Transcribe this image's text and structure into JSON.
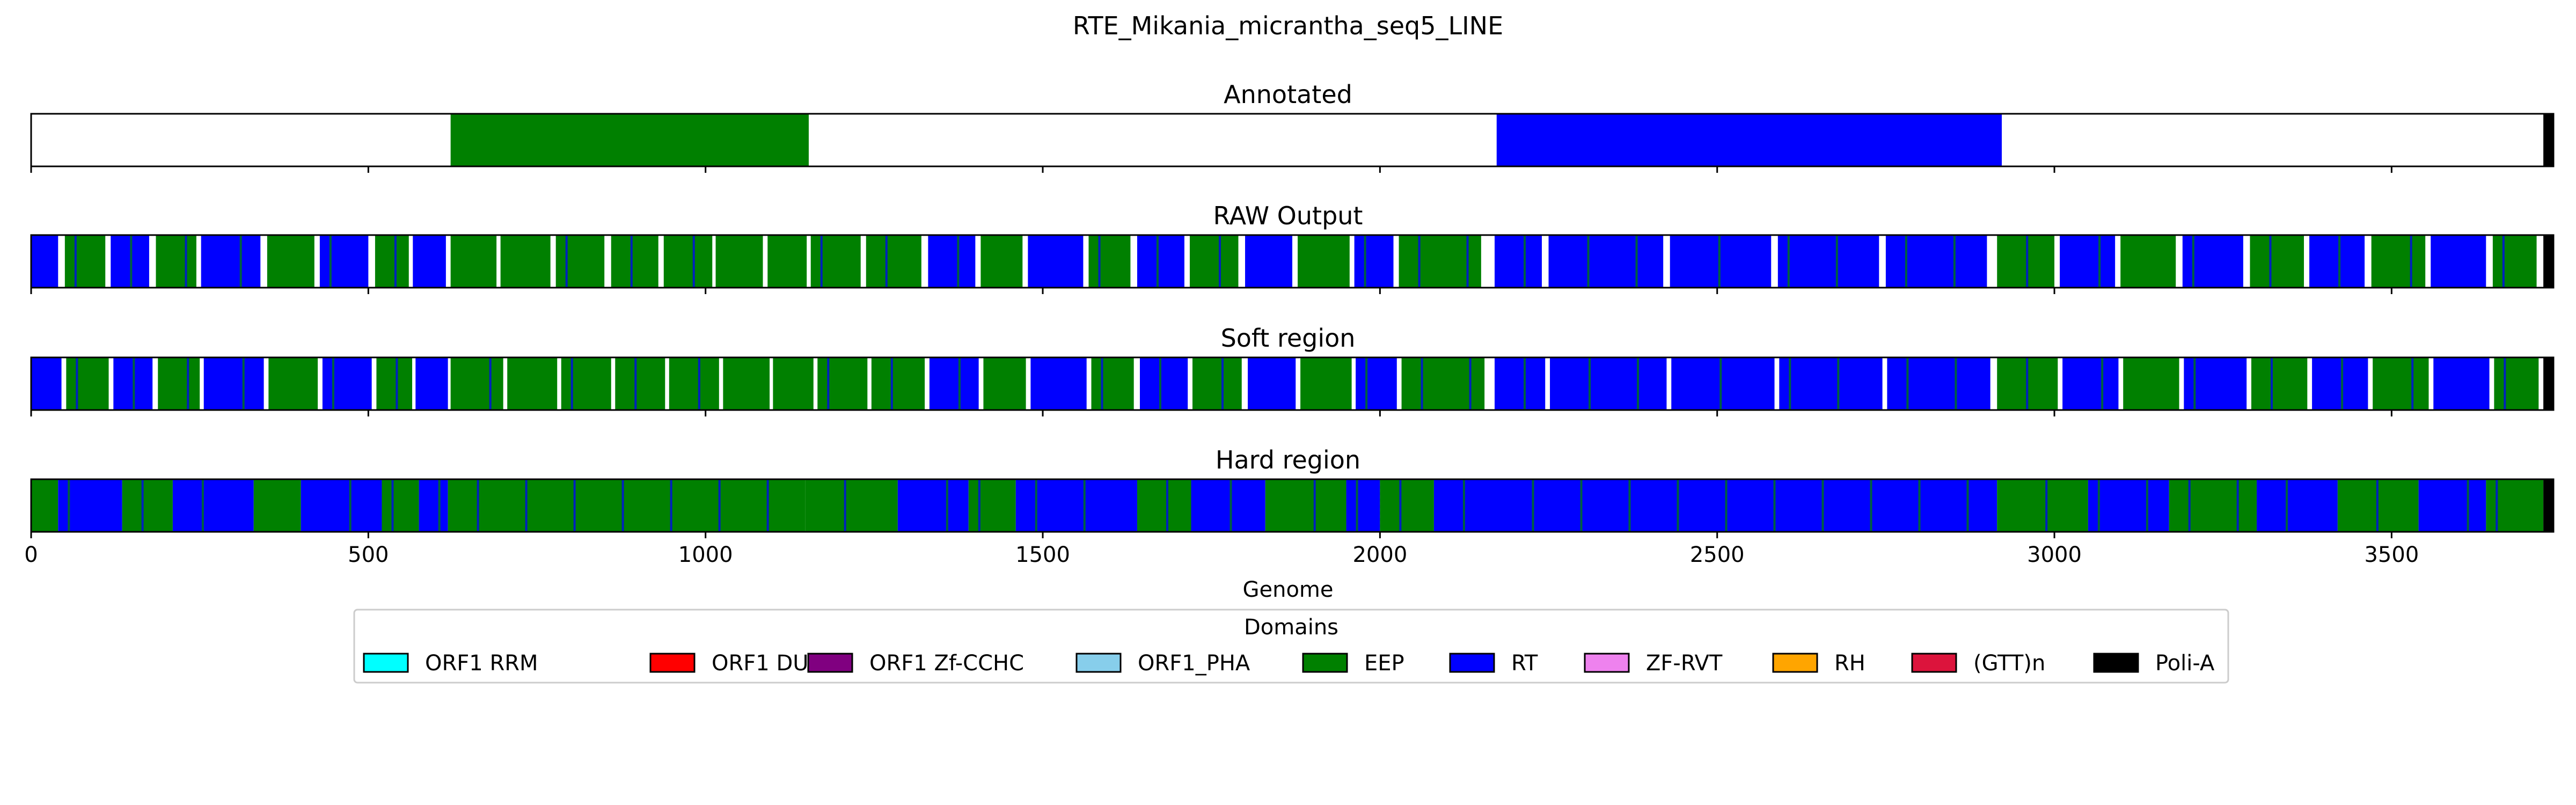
{
  "chart_data": {
    "type": "genome-track",
    "title": "RTE_Mikania_micrantha_seq5_LINE",
    "xlabel": "Genome",
    "xlim": [
      0,
      3740
    ],
    "xticks": [
      0,
      500,
      1000,
      1500,
      2000,
      2500,
      3000,
      3500
    ],
    "tracks": [
      {
        "label": "Annotated",
        "segments": [
          {
            "start": 622,
            "end": 1153,
            "domain": "EEP"
          },
          {
            "start": 2173,
            "end": 2922,
            "domain": "RT"
          },
          {
            "start": 3725,
            "end": 3740,
            "domain": "Poli-A"
          }
        ]
      },
      {
        "label": "RAW Output",
        "segments": [
          {
            "start": 0,
            "end": 40,
            "domain": "RT"
          },
          {
            "start": 50,
            "end": 110,
            "domain": "EEP"
          },
          {
            "start": 118,
            "end": 175,
            "domain": "RT"
          },
          {
            "start": 185,
            "end": 245,
            "domain": "EEP"
          },
          {
            "start": 252,
            "end": 340,
            "domain": "RT"
          },
          {
            "start": 350,
            "end": 420,
            "domain": "EEP"
          },
          {
            "start": 428,
            "end": 500,
            "domain": "RT"
          },
          {
            "start": 510,
            "end": 560,
            "domain": "EEP"
          },
          {
            "start": 566,
            "end": 615,
            "domain": "RT"
          },
          {
            "start": 622,
            "end": 690,
            "domain": "EEP"
          },
          {
            "start": 696,
            "end": 770,
            "domain": "EEP"
          },
          {
            "start": 778,
            "end": 850,
            "domain": "EEP"
          },
          {
            "start": 860,
            "end": 930,
            "domain": "EEP"
          },
          {
            "start": 938,
            "end": 1010,
            "domain": "EEP"
          },
          {
            "start": 1015,
            "end": 1085,
            "domain": "EEP"
          },
          {
            "start": 1092,
            "end": 1150,
            "domain": "EEP"
          },
          {
            "start": 1156,
            "end": 1230,
            "domain": "EEP"
          },
          {
            "start": 1238,
            "end": 1320,
            "domain": "EEP"
          },
          {
            "start": 1330,
            "end": 1400,
            "domain": "RT"
          },
          {
            "start": 1408,
            "end": 1470,
            "domain": "EEP"
          },
          {
            "start": 1478,
            "end": 1560,
            "domain": "RT"
          },
          {
            "start": 1568,
            "end": 1630,
            "domain": "EEP"
          },
          {
            "start": 1640,
            "end": 1710,
            "domain": "RT"
          },
          {
            "start": 1718,
            "end": 1790,
            "domain": "EEP"
          },
          {
            "start": 1800,
            "end": 1870,
            "domain": "RT"
          },
          {
            "start": 1878,
            "end": 1955,
            "domain": "EEP"
          },
          {
            "start": 1962,
            "end": 2020,
            "domain": "RT"
          },
          {
            "start": 2028,
            "end": 2150,
            "domain": "EEP"
          },
          {
            "start": 2170,
            "end": 2240,
            "domain": "RT"
          },
          {
            "start": 2250,
            "end": 2420,
            "domain": "RT"
          },
          {
            "start": 2430,
            "end": 2580,
            "domain": "RT"
          },
          {
            "start": 2590,
            "end": 2740,
            "domain": "RT"
          },
          {
            "start": 2750,
            "end": 2900,
            "domain": "RT"
          },
          {
            "start": 2915,
            "end": 3000,
            "domain": "EEP"
          },
          {
            "start": 3008,
            "end": 3090,
            "domain": "RT"
          },
          {
            "start": 3098,
            "end": 3180,
            "domain": "EEP"
          },
          {
            "start": 3190,
            "end": 3280,
            "domain": "RT"
          },
          {
            "start": 3290,
            "end": 3370,
            "domain": "EEP"
          },
          {
            "start": 3378,
            "end": 3460,
            "domain": "RT"
          },
          {
            "start": 3470,
            "end": 3550,
            "domain": "EEP"
          },
          {
            "start": 3558,
            "end": 3640,
            "domain": "RT"
          },
          {
            "start": 3650,
            "end": 3715,
            "domain": "EEP"
          },
          {
            "start": 3725,
            "end": 3740,
            "domain": "Poli-A"
          }
        ]
      },
      {
        "label": "Soft region",
        "segments": [
          {
            "start": 0,
            "end": 45,
            "domain": "RT"
          },
          {
            "start": 52,
            "end": 115,
            "domain": "EEP"
          },
          {
            "start": 122,
            "end": 180,
            "domain": "RT"
          },
          {
            "start": 188,
            "end": 250,
            "domain": "EEP"
          },
          {
            "start": 256,
            "end": 345,
            "domain": "RT"
          },
          {
            "start": 352,
            "end": 425,
            "domain": "EEP"
          },
          {
            "start": 432,
            "end": 505,
            "domain": "RT"
          },
          {
            "start": 512,
            "end": 565,
            "domain": "EEP"
          },
          {
            "start": 570,
            "end": 618,
            "domain": "RT"
          },
          {
            "start": 622,
            "end": 700,
            "domain": "EEP"
          },
          {
            "start": 706,
            "end": 780,
            "domain": "EEP"
          },
          {
            "start": 786,
            "end": 860,
            "domain": "EEP"
          },
          {
            "start": 866,
            "end": 940,
            "domain": "EEP"
          },
          {
            "start": 946,
            "end": 1020,
            "domain": "EEP"
          },
          {
            "start": 1026,
            "end": 1095,
            "domain": "EEP"
          },
          {
            "start": 1100,
            "end": 1160,
            "domain": "EEP"
          },
          {
            "start": 1166,
            "end": 1240,
            "domain": "EEP"
          },
          {
            "start": 1246,
            "end": 1325,
            "domain": "EEP"
          },
          {
            "start": 1332,
            "end": 1405,
            "domain": "RT"
          },
          {
            "start": 1412,
            "end": 1475,
            "domain": "EEP"
          },
          {
            "start": 1482,
            "end": 1565,
            "domain": "RT"
          },
          {
            "start": 1572,
            "end": 1635,
            "domain": "EEP"
          },
          {
            "start": 1644,
            "end": 1715,
            "domain": "RT"
          },
          {
            "start": 1722,
            "end": 1795,
            "domain": "EEP"
          },
          {
            "start": 1804,
            "end": 1875,
            "domain": "RT"
          },
          {
            "start": 1882,
            "end": 1958,
            "domain": "EEP"
          },
          {
            "start": 1964,
            "end": 2025,
            "domain": "RT"
          },
          {
            "start": 2032,
            "end": 2155,
            "domain": "EEP"
          },
          {
            "start": 2170,
            "end": 2245,
            "domain": "RT"
          },
          {
            "start": 2252,
            "end": 2425,
            "domain": "RT"
          },
          {
            "start": 2432,
            "end": 2585,
            "domain": "RT"
          },
          {
            "start": 2592,
            "end": 2745,
            "domain": "RT"
          },
          {
            "start": 2752,
            "end": 2905,
            "domain": "RT"
          },
          {
            "start": 2915,
            "end": 3005,
            "domain": "EEP"
          },
          {
            "start": 3012,
            "end": 3095,
            "domain": "RT"
          },
          {
            "start": 3102,
            "end": 3185,
            "domain": "EEP"
          },
          {
            "start": 3192,
            "end": 3285,
            "domain": "RT"
          },
          {
            "start": 3292,
            "end": 3375,
            "domain": "EEP"
          },
          {
            "start": 3382,
            "end": 3465,
            "domain": "RT"
          },
          {
            "start": 3472,
            "end": 3555,
            "domain": "EEP"
          },
          {
            "start": 3562,
            "end": 3645,
            "domain": "RT"
          },
          {
            "start": 3652,
            "end": 3718,
            "domain": "EEP"
          },
          {
            "start": 3725,
            "end": 3740,
            "domain": "Poli-A"
          }
        ]
      },
      {
        "label": "Hard region",
        "segments": [
          {
            "start": 0,
            "end": 40,
            "domain": "EEP"
          },
          {
            "start": 40,
            "end": 135,
            "domain": "RT"
          },
          {
            "start": 135,
            "end": 210,
            "domain": "EEP"
          },
          {
            "start": 210,
            "end": 330,
            "domain": "RT"
          },
          {
            "start": 330,
            "end": 400,
            "domain": "EEP"
          },
          {
            "start": 400,
            "end": 520,
            "domain": "RT"
          },
          {
            "start": 520,
            "end": 575,
            "domain": "EEP"
          },
          {
            "start": 575,
            "end": 618,
            "domain": "RT"
          },
          {
            "start": 618,
            "end": 1148,
            "domain": "EEP"
          },
          {
            "start": 1148,
            "end": 1285,
            "domain": "EEP"
          },
          {
            "start": 1285,
            "end": 1390,
            "domain": "RT"
          },
          {
            "start": 1390,
            "end": 1460,
            "domain": "EEP"
          },
          {
            "start": 1460,
            "end": 1640,
            "domain": "RT"
          },
          {
            "start": 1640,
            "end": 1720,
            "domain": "EEP"
          },
          {
            "start": 1720,
            "end": 1830,
            "domain": "RT"
          },
          {
            "start": 1830,
            "end": 1950,
            "domain": "EEP"
          },
          {
            "start": 1950,
            "end": 2000,
            "domain": "RT"
          },
          {
            "start": 2000,
            "end": 2080,
            "domain": "EEP"
          },
          {
            "start": 2080,
            "end": 2168,
            "domain": "RT"
          },
          {
            "start": 2168,
            "end": 2915,
            "domain": "RT"
          },
          {
            "start": 2915,
            "end": 3050,
            "domain": "EEP"
          },
          {
            "start": 3050,
            "end": 3170,
            "domain": "RT"
          },
          {
            "start": 3170,
            "end": 3300,
            "domain": "EEP"
          },
          {
            "start": 3300,
            "end": 3420,
            "domain": "RT"
          },
          {
            "start": 3420,
            "end": 3540,
            "domain": "EEP"
          },
          {
            "start": 3540,
            "end": 3640,
            "domain": "RT"
          },
          {
            "start": 3640,
            "end": 3725,
            "domain": "EEP"
          },
          {
            "start": 3725,
            "end": 3740,
            "domain": "Poli-A"
          }
        ]
      }
    ],
    "legend": {
      "title": "Domains",
      "placement": "bottom-center",
      "items": [
        {
          "name": "ORF1 RRM",
          "color": "#00ffff"
        },
        {
          "name": "ORF1 DUF",
          "color": "#ff0000"
        },
        {
          "name": "ORF1 Zf-CCHC",
          "color": "#800080"
        },
        {
          "name": "ORF1_PHA",
          "color": "#87ceeb"
        },
        {
          "name": "EEP",
          "color": "#008000"
        },
        {
          "name": "RT",
          "color": "#0000ff"
        },
        {
          "name": "ZF-RVT",
          "color": "#ee82ee"
        },
        {
          "name": "RH",
          "color": "#ffa500"
        },
        {
          "name": "(GTT)n",
          "color": "#dc143c"
        },
        {
          "name": "Poli-A",
          "color": "#000000"
        }
      ]
    },
    "grid": "dashed vertical lines on bottom track only"
  }
}
